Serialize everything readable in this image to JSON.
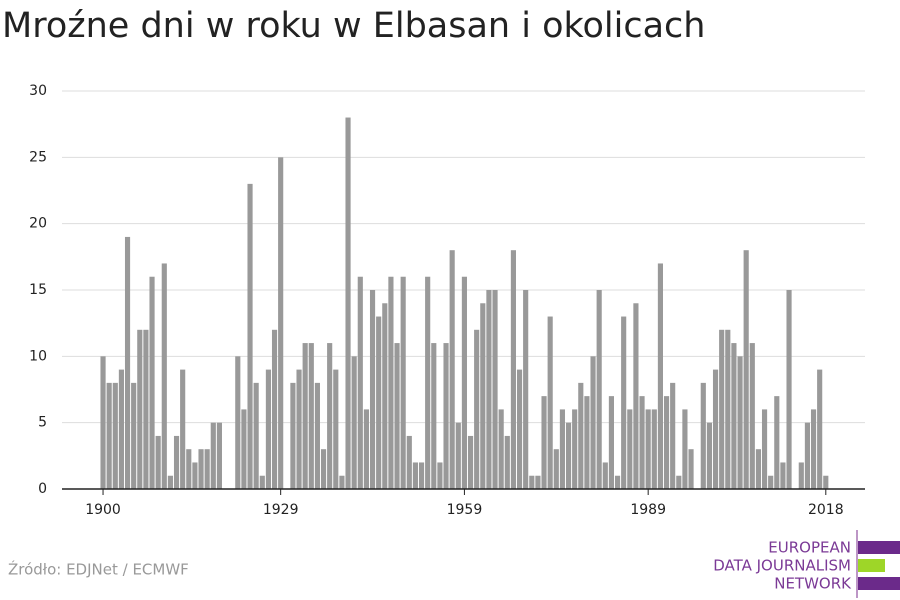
{
  "chart_data": {
    "type": "bar",
    "title": "Mroźne dni w roku w Elbasan i okolicach",
    "source": "Źródło: EDJNet / ECMWF",
    "logo": [
      "EUROPEAN",
      "DATA JOURNALISM",
      "NETWORK"
    ],
    "color": "#999999",
    "grid": true,
    "x": [
      1900,
      1901,
      1902,
      1903,
      1904,
      1905,
      1906,
      1907,
      1908,
      1909,
      1910,
      1911,
      1912,
      1913,
      1914,
      1915,
      1916,
      1917,
      1918,
      1919,
      1920,
      1921,
      1922,
      1923,
      1924,
      1925,
      1926,
      1927,
      1928,
      1929,
      1930,
      1931,
      1932,
      1933,
      1934,
      1935,
      1936,
      1937,
      1938,
      1939,
      1940,
      1941,
      1942,
      1943,
      1944,
      1945,
      1946,
      1947,
      1948,
      1949,
      1950,
      1951,
      1952,
      1953,
      1954,
      1955,
      1956,
      1957,
      1958,
      1959,
      1960,
      1961,
      1962,
      1963,
      1964,
      1965,
      1966,
      1967,
      1968,
      1969,
      1970,
      1971,
      1972,
      1973,
      1974,
      1975,
      1976,
      1977,
      1978,
      1979,
      1980,
      1981,
      1982,
      1983,
      1984,
      1985,
      1986,
      1987,
      1988,
      1989,
      1990,
      1991,
      1992,
      1993,
      1994,
      1995,
      1996,
      1997,
      1998,
      1999,
      2000,
      2001,
      2002,
      2003,
      2004,
      2005,
      2006,
      2007,
      2008,
      2009,
      2010,
      2011,
      2012,
      2013,
      2014,
      2015,
      2016,
      2017,
      2018
    ],
    "values": [
      10,
      8,
      8,
      9,
      19,
      8,
      12,
      12,
      16,
      4,
      17,
      1,
      4,
      9,
      3,
      2,
      3,
      3,
      5,
      5,
      0,
      0,
      10,
      6,
      23,
      8,
      1,
      9,
      12,
      25,
      0,
      8,
      9,
      11,
      11,
      8,
      3,
      11,
      9,
      1,
      28,
      10,
      16,
      6,
      15,
      13,
      14,
      16,
      11,
      16,
      4,
      2,
      2,
      16,
      11,
      2,
      11,
      18,
      5,
      16,
      4,
      12,
      14,
      15,
      15,
      6,
      4,
      18,
      9,
      15,
      1,
      1,
      7,
      13,
      3,
      6,
      5,
      6,
      8,
      7,
      10,
      15,
      2,
      7,
      1,
      13,
      6,
      14,
      7,
      6,
      6,
      17,
      7,
      8,
      1,
      6,
      3,
      0,
      8,
      5,
      9,
      12,
      12,
      11,
      10,
      18,
      11,
      3,
      6,
      1,
      7,
      2,
      15,
      0,
      2,
      5,
      6,
      9,
      1
    ],
    "xlim": [
      1893.3,
      2024.4
    ],
    "xticks": [
      1900,
      1929,
      1959,
      1989,
      2018
    ],
    "ylim": [
      0,
      30
    ],
    "yticks": [
      0,
      5,
      10,
      15,
      20,
      25,
      30
    ]
  }
}
